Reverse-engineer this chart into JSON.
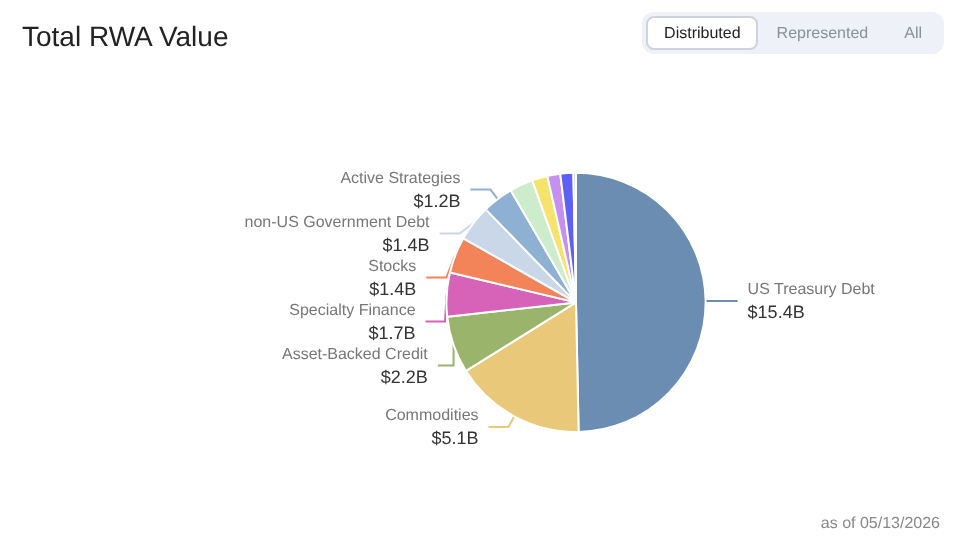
{
  "chart_data": {
    "type": "pie",
    "title": "Total RWA Value",
    "categories": [
      "US Treasury Debt",
      "Commodities",
      "Asset-Backed Credit",
      "Specialty Finance",
      "Stocks",
      "non-US Government Debt",
      "Active Strategies",
      null,
      null,
      null,
      null,
      null
    ],
    "values": [
      15.4,
      5.1,
      2.2,
      1.7,
      1.4,
      1.4,
      1.2,
      0.9,
      0.6,
      0.5,
      0.5,
      0.1
    ],
    "value_labels": [
      "$15.4B",
      "$5.1B",
      "$2.2B",
      "$1.7B",
      "$1.4B",
      "$1.4B",
      "$1.2B",
      null,
      null,
      null,
      null,
      null
    ],
    "colors": [
      "#6a8db1",
      "#e9c87a",
      "#9bb46c",
      "#d663b8",
      "#f3845a",
      "#c9d7e9",
      "#8eb0d2",
      "#cdeccb",
      "#f5e36b",
      "#c690f0",
      "#5d60f3",
      "#bdbdbd"
    ],
    "annotations": [
      "Distributed",
      "Represented",
      "All",
      "as of 05/13/2026"
    ]
  }
}
